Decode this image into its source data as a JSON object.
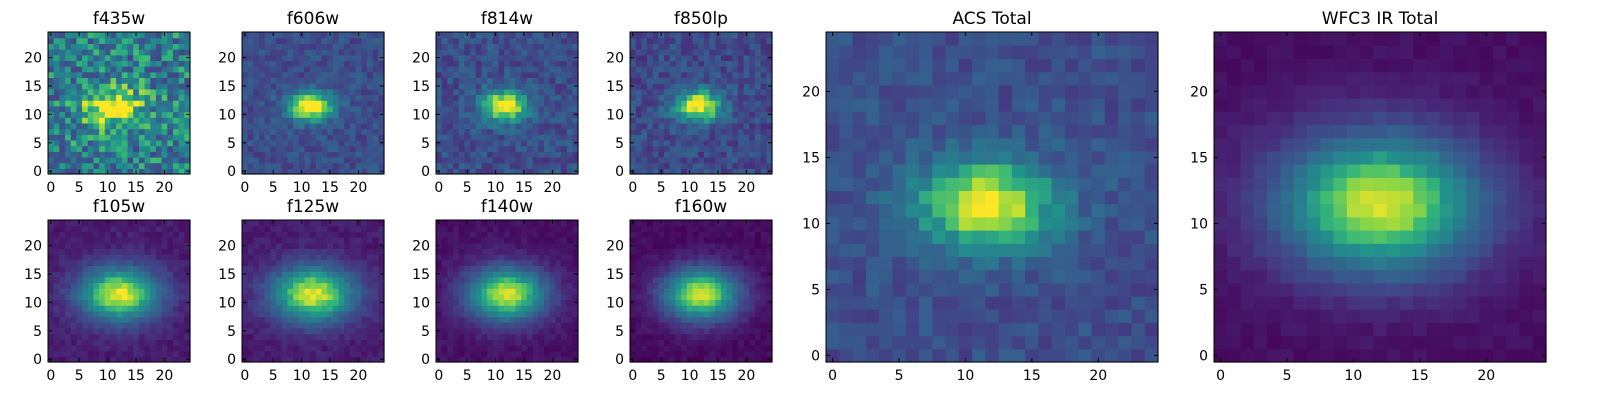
{
  "chart_data": [
    {
      "type": "heatmap",
      "title": "f435w",
      "x_ticks": [
        "0",
        "5",
        "10",
        "15",
        "20"
      ],
      "y_ticks": [
        "0",
        "5",
        "10",
        "15",
        "20"
      ],
      "xlim": [
        0,
        25
      ],
      "ylim": [
        0,
        25
      ],
      "grid_size": 25,
      "center": [
        11,
        11.5
      ],
      "sigma": [
        3.5,
        2.5
      ],
      "peak": 0.55,
      "background": 0.52,
      "noise": 0.26,
      "colormap": "viridis"
    },
    {
      "type": "heatmap",
      "title": "f606w",
      "x_ticks": [
        "0",
        "5",
        "10",
        "15",
        "20"
      ],
      "y_ticks": [
        "0",
        "5",
        "10",
        "15",
        "20"
      ],
      "xlim": [
        0,
        25
      ],
      "ylim": [
        0,
        25
      ],
      "grid_size": 25,
      "center": [
        11.5,
        11.5
      ],
      "sigma": [
        2.8,
        1.8
      ],
      "peak": 0.82,
      "background": 0.3,
      "noise": 0.1,
      "colormap": "viridis"
    },
    {
      "type": "heatmap",
      "title": "f814w",
      "x_ticks": [
        "0",
        "5",
        "10",
        "15",
        "20"
      ],
      "y_ticks": [
        "0",
        "5",
        "10",
        "15",
        "20"
      ],
      "xlim": [
        0,
        25
      ],
      "ylim": [
        0,
        25
      ],
      "grid_size": 25,
      "center": [
        11.5,
        11.5
      ],
      "sigma": [
        2.9,
        2.0
      ],
      "peak": 0.75,
      "background": 0.3,
      "noise": 0.12,
      "colormap": "viridis"
    },
    {
      "type": "heatmap",
      "title": "f850lp",
      "x_ticks": [
        "0",
        "5",
        "10",
        "15",
        "20"
      ],
      "y_ticks": [
        "0",
        "5",
        "10",
        "15",
        "20"
      ],
      "xlim": [
        0,
        25
      ],
      "ylim": [
        0,
        25
      ],
      "grid_size": 25,
      "center": [
        11.5,
        11.5
      ],
      "sigma": [
        3.0,
        2.0
      ],
      "peak": 0.75,
      "background": 0.28,
      "noise": 0.12,
      "colormap": "viridis"
    },
    {
      "type": "heatmap",
      "title": "f105w",
      "x_ticks": [
        "0",
        "5",
        "10",
        "15",
        "20"
      ],
      "y_ticks": [
        "0",
        "5",
        "10",
        "15",
        "20"
      ],
      "xlim": [
        0,
        25
      ],
      "ylim": [
        0,
        25
      ],
      "grid_size": 25,
      "center": [
        12,
        11.5
      ],
      "sigma": [
        5.0,
        3.4
      ],
      "peak": 0.88,
      "background": 0.1,
      "noise": 0.05,
      "colormap": "viridis"
    },
    {
      "type": "heatmap",
      "title": "f125w",
      "x_ticks": [
        "0",
        "5",
        "10",
        "15",
        "20"
      ],
      "y_ticks": [
        "0",
        "5",
        "10",
        "15",
        "20"
      ],
      "xlim": [
        0,
        25
      ],
      "ylim": [
        0,
        25
      ],
      "grid_size": 25,
      "center": [
        12,
        11.5
      ],
      "sigma": [
        5.2,
        3.5
      ],
      "peak": 0.88,
      "background": 0.1,
      "noise": 0.05,
      "colormap": "viridis"
    },
    {
      "type": "heatmap",
      "title": "f140w",
      "x_ticks": [
        "0",
        "5",
        "10",
        "15",
        "20"
      ],
      "y_ticks": [
        "0",
        "5",
        "10",
        "15",
        "20"
      ],
      "xlim": [
        0,
        25
      ],
      "ylim": [
        0,
        25
      ],
      "grid_size": 25,
      "center": [
        12,
        11.5
      ],
      "sigma": [
        5.0,
        3.4
      ],
      "peak": 0.9,
      "background": 0.06,
      "noise": 0.04,
      "colormap": "viridis"
    },
    {
      "type": "heatmap",
      "title": "f160w",
      "x_ticks": [
        "0",
        "5",
        "10",
        "15",
        "20"
      ],
      "y_ticks": [
        "0",
        "5",
        "10",
        "15",
        "20"
      ],
      "xlim": [
        0,
        25
      ],
      "ylim": [
        0,
        25
      ],
      "grid_size": 25,
      "center": [
        12,
        11.5
      ],
      "sigma": [
        4.8,
        3.3
      ],
      "peak": 0.92,
      "background": 0.04,
      "noise": 0.04,
      "colormap": "viridis"
    },
    {
      "type": "heatmap",
      "title": "ACS Total",
      "x_ticks": [
        "0",
        "5",
        "10",
        "15",
        "20"
      ],
      "y_ticks": [
        "0",
        "5",
        "10",
        "15",
        "20"
      ],
      "xlim": [
        0,
        25
      ],
      "ylim": [
        0,
        25
      ],
      "grid_size": 25,
      "center": [
        11.5,
        11.5
      ],
      "sigma": [
        3.8,
        2.4
      ],
      "peak": 0.72,
      "background": 0.3,
      "noise": 0.09,
      "colormap": "viridis"
    },
    {
      "type": "heatmap",
      "title": "WFC3 IR Total",
      "x_ticks": [
        "0",
        "5",
        "10",
        "15",
        "20"
      ],
      "y_ticks": [
        "0",
        "5",
        "10",
        "15",
        "20"
      ],
      "xlim": [
        0,
        25
      ],
      "ylim": [
        0,
        25
      ],
      "grid_size": 25,
      "center": [
        12,
        11.5
      ],
      "sigma": [
        5.5,
        3.8
      ],
      "peak": 0.92,
      "background": 0.05,
      "noise": 0.03,
      "colormap": "viridis"
    }
  ]
}
